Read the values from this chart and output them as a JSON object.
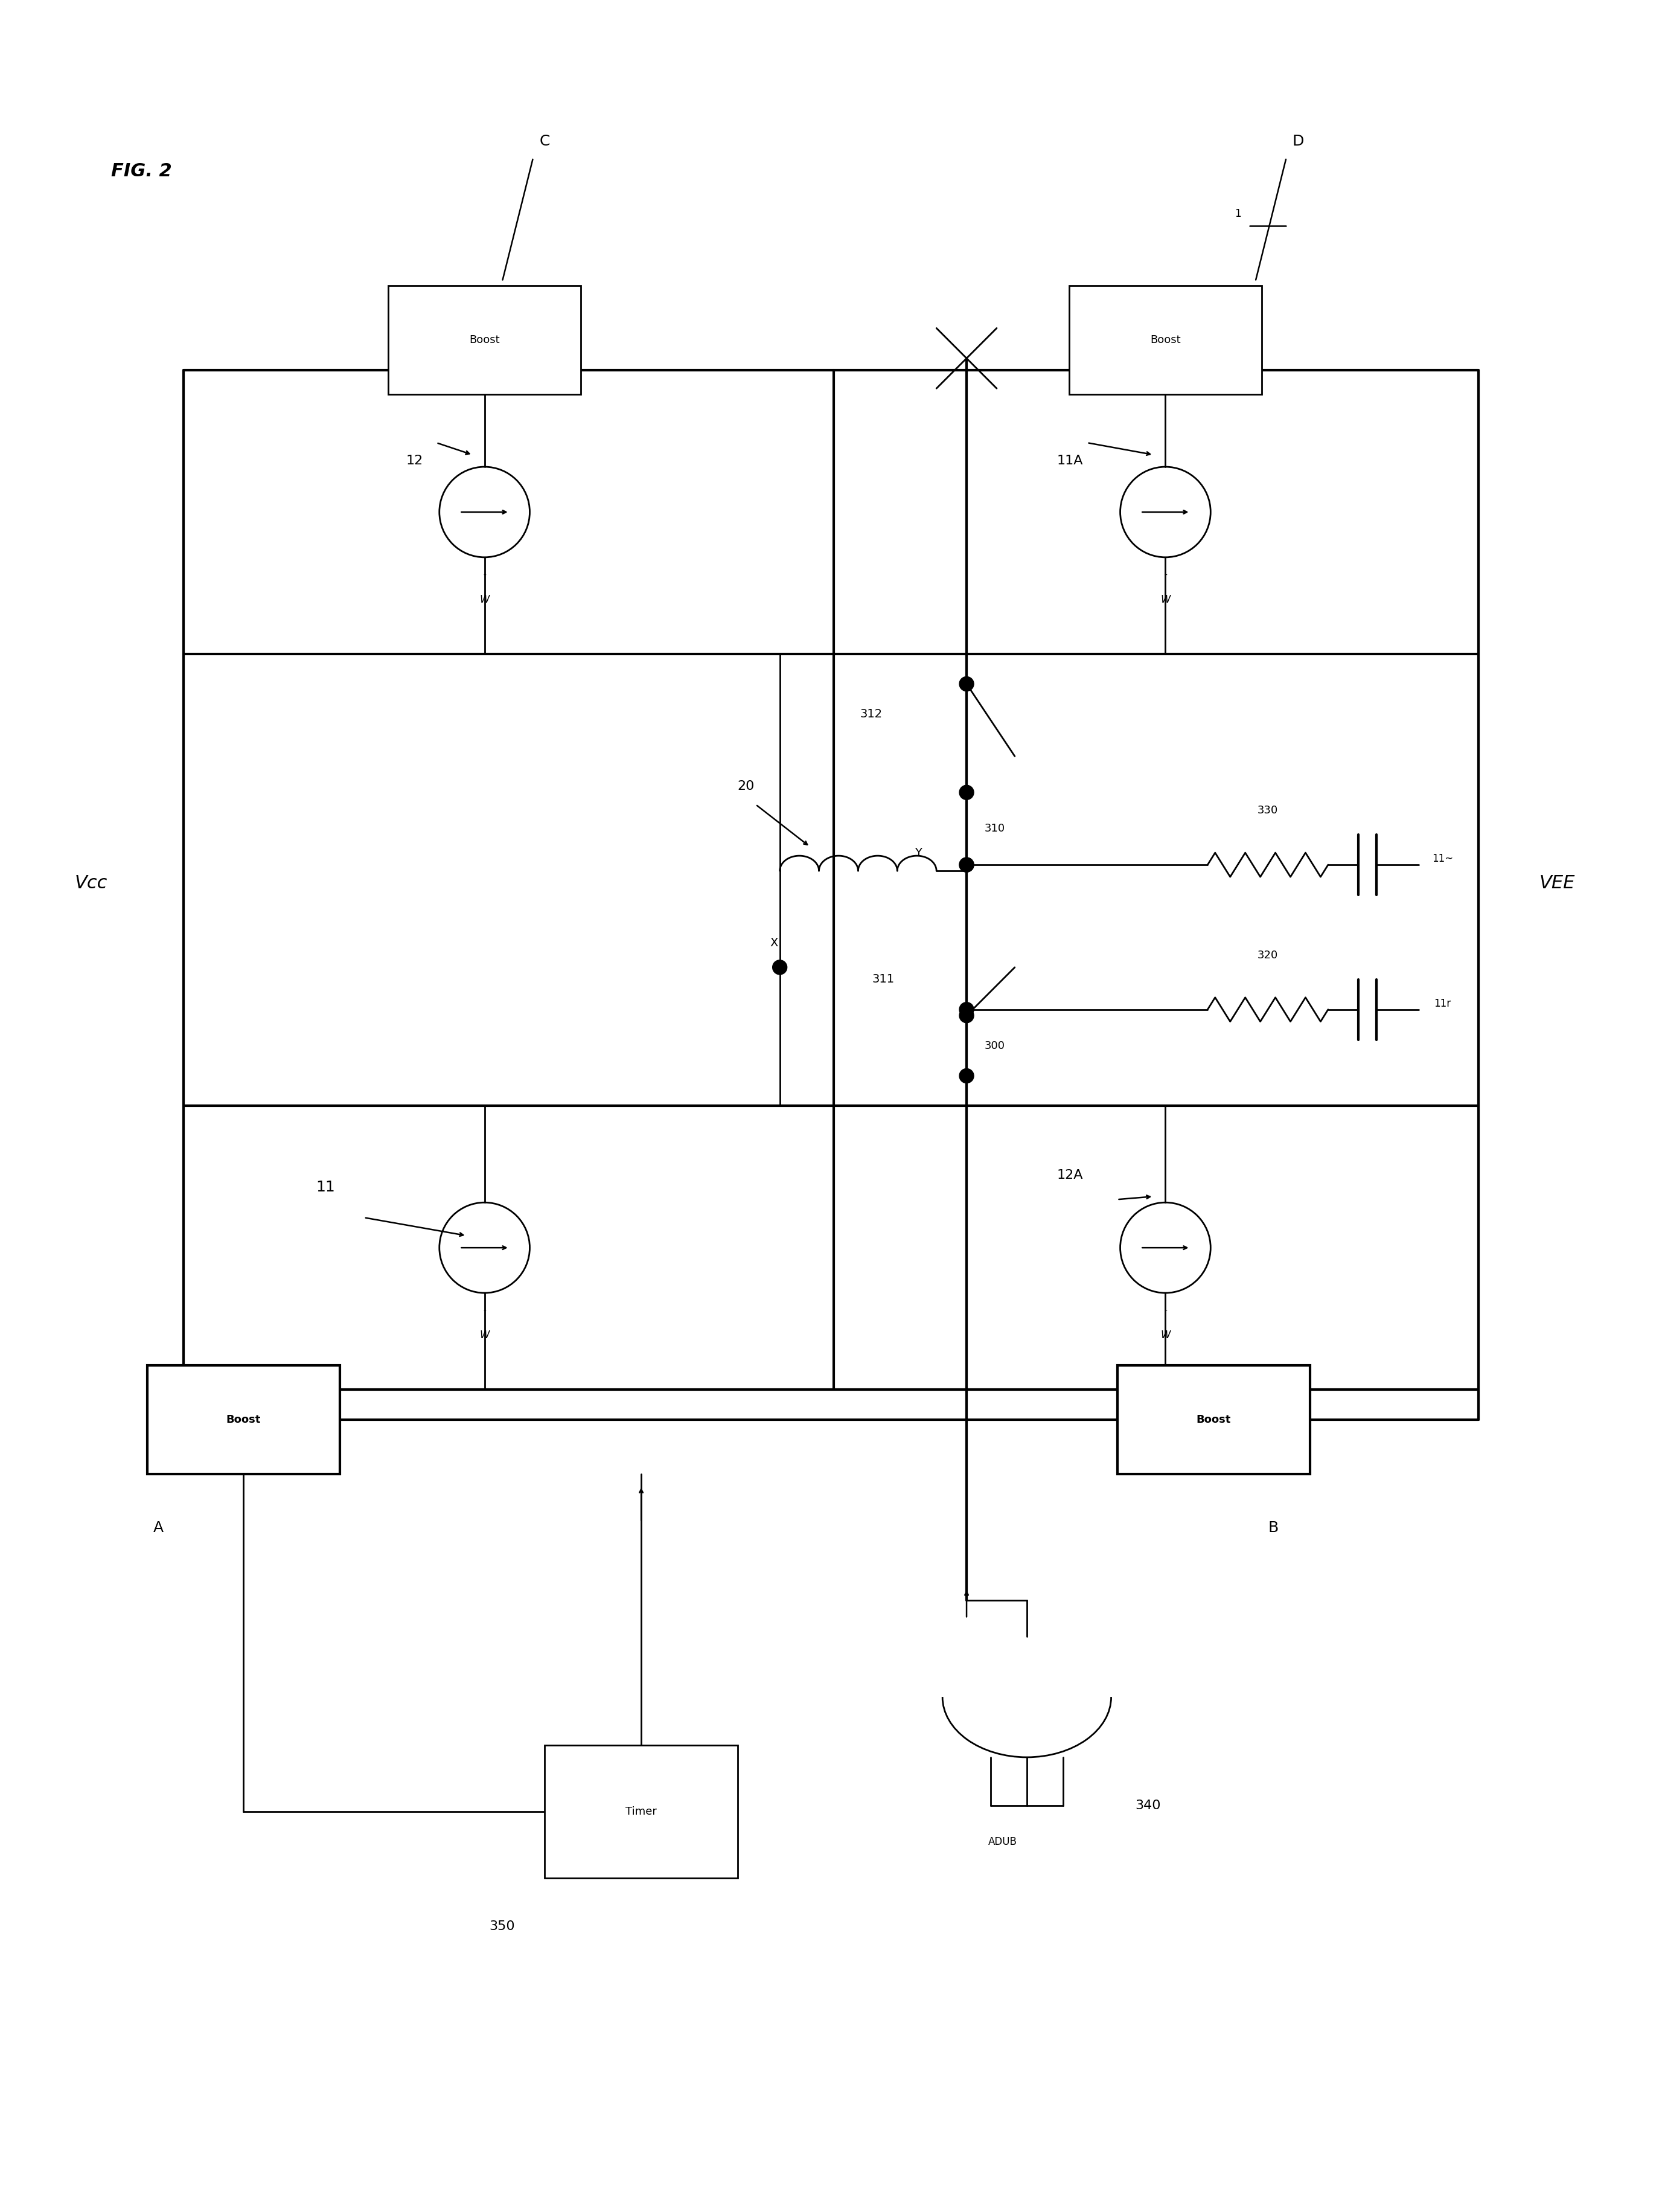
{
  "bg_color": "#ffffff",
  "fig_width": 27.53,
  "fig_height": 36.63,
  "labels": {
    "fig_title": "FIG. 2",
    "vcc": "Vcc",
    "vee": "VEE",
    "label_A": "A",
    "label_B": "B",
    "label_C": "C",
    "label_D": "D",
    "boost": "Boost",
    "label_11": "11",
    "label_12": "12",
    "label_11A": "11A",
    "label_12A": "12A",
    "label_20": "20",
    "label_300": "300",
    "label_310": "310",
    "label_311": "311",
    "label_312": "312",
    "label_320": "320",
    "label_330": "330",
    "label_340": "340",
    "label_350": "350",
    "label_timer": "Timer",
    "point_x": "X",
    "point_y": "Y",
    "cap_label_1": "11~",
    "cap_label_2": "11r",
    "w_label": "W",
    "adub": "ADUB"
  }
}
